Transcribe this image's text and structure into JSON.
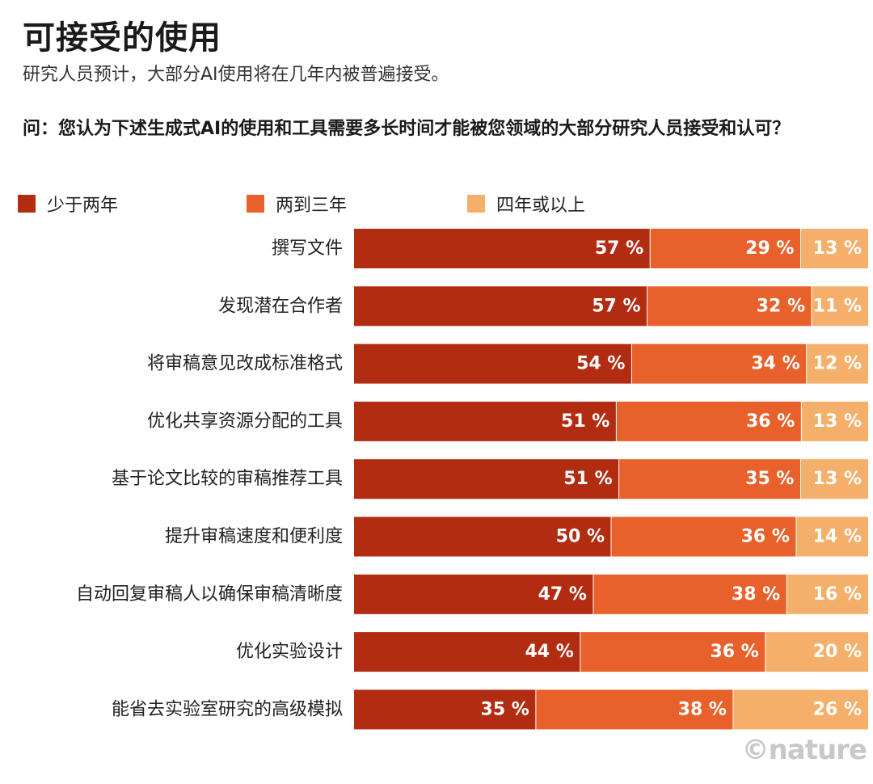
{
  "title": "可接受的使用",
  "subtitle": "研究人员预计，大部分AI使用将在几年内被普遍接受。",
  "question": "问：您认为下述生成式AI的使用和工具需要多长时间才能被您领域的大部分研究人员接受和认可？",
  "credit": "©nature",
  "chart_data": {
    "type": "bar",
    "orientation": "horizontal",
    "stacked": true,
    "categories": [
      "撰写文件",
      "发现潜在合作者",
      "将审稿意见改成标准格式",
      "优化共享资源分配的工具",
      "基于论文比较的审稿推荐工具",
      "提升审稿速度和便利度",
      "自动回复审稿人以确保审稿清晰度",
      "优化实验设计",
      "能省去实验室研究的高级模拟"
    ],
    "series": [
      {
        "name": "少于两年",
        "color": "#b22c12",
        "values": [
          57,
          57,
          54,
          51,
          51,
          50,
          47,
          44,
          35
        ]
      },
      {
        "name": "两到三年",
        "color": "#e8612a",
        "values": [
          29,
          32,
          34,
          36,
          35,
          36,
          38,
          36,
          38
        ]
      },
      {
        "name": "四年或以上",
        "color": "#f4b06b",
        "values": [
          13,
          11,
          12,
          13,
          13,
          14,
          16,
          20,
          26
        ]
      }
    ],
    "value_suffix": " %",
    "legend_position": "top-left",
    "grid": false
  }
}
